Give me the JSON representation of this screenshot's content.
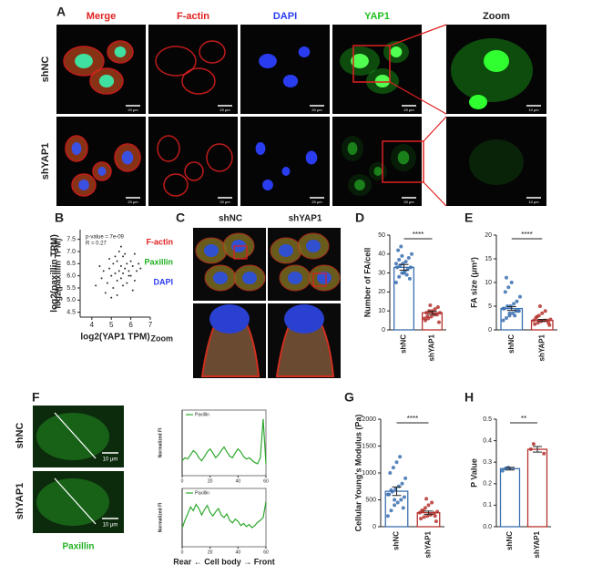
{
  "labels": {
    "panel_a": "A",
    "panel_b": "B",
    "panel_c": "C",
    "panel_d": "D",
    "panel_e": "E",
    "panel_f": "F",
    "panel_g": "G",
    "panel_h": "H",
    "a_columns": [
      "Merge",
      "F-actin",
      "DAPI",
      "YAP1",
      "Zoom"
    ],
    "a_rows": [
      "shNC",
      "shYAP1"
    ],
    "a_scale": "20 μm",
    "a_zoom_scale": "10 μm",
    "c_columns": [
      "shNC",
      "shYAP1"
    ],
    "c_channels": [
      "F-actin",
      "Paxillin",
      "DAPI"
    ],
    "c_zoom": "Zoom",
    "f_rows": [
      "shNC",
      "shYAP1"
    ],
    "f_scale": "10 μm",
    "f_channel": "Paxillin"
  },
  "chart_data": [
    {
      "type": "scatter",
      "xlabel": "log2(YAP1 TPM)",
      "ylabel": "log2(paxillin TPM)",
      "annotations": [
        "p-value = 7e-09",
        "R = 0.27"
      ],
      "color": "#333333",
      "xlim": [
        3.4,
        7
      ],
      "ylim": [
        4.3,
        7.9
      ],
      "xticks": [
        4,
        5,
        6,
        7
      ],
      "yticks": [
        {
          "value": 4.5,
          "label": "4.5"
        },
        {
          "value": 5,
          "label": "5.0"
        },
        {
          "value": 5.5,
          "label": "5.5"
        },
        {
          "value": 6,
          "label": "6.0"
        },
        {
          "value": 6.5,
          "label": "6.5"
        },
        {
          "value": 7,
          "label": "7.0"
        },
        {
          "value": 7.5,
          "label": "7.5"
        }
      ],
      "x": [
        4.2,
        4.5,
        4.6,
        4.8,
        4.9,
        5.0,
        5.1,
        5.1,
        5.2,
        5.3,
        5.3,
        5.4,
        5.5,
        5.5,
        5.6,
        5.6,
        5.7,
        5.8,
        5.8,
        5.9,
        6.0,
        6.0,
        6.1,
        6.2,
        6.3,
        6.4,
        4.4,
        4.7,
        5.0,
        5.2,
        5.4,
        5.6,
        5.9,
        6.1,
        6.5,
        4.9,
        5.3,
        5.7,
        6.2,
        5.5
      ],
      "y": [
        5.6,
        5.9,
        6.2,
        5.7,
        6.3,
        6.0,
        6.5,
        5.5,
        6.1,
        6.6,
        5.8,
        6.2,
        6.4,
        5.9,
        6.8,
        6.1,
        6.3,
        6.5,
        5.7,
        6.2,
        6.6,
        6.0,
        6.4,
        6.9,
        6.2,
        6.5,
        6.4,
        5.3,
        5.1,
        6.8,
        7.0,
        5.6,
        6.0,
        5.4,
        6.3,
        6.7,
        5.2,
        6.9,
        5.8,
        7.2
      ]
    },
    {
      "type": "bar",
      "ylabel": "Number of FA/cell",
      "categories": [
        "shNC",
        "shYAP1"
      ],
      "values": [
        33,
        9
      ],
      "errors": [
        1.5,
        0.8
      ],
      "points": [
        [
          25,
          28,
          30,
          31,
          32,
          33,
          33,
          34,
          35,
          36,
          38,
          40,
          42,
          44,
          30,
          29,
          27,
          35,
          37,
          39
        ],
        [
          4,
          5,
          6,
          7,
          8,
          8,
          9,
          9,
          10,
          10,
          11,
          12,
          6,
          7,
          13
        ]
      ],
      "colors": [
        "#3a6fb0",
        "#b5322e"
      ],
      "ylim": [
        0,
        50
      ],
      "yticks": [
        0,
        10,
        20,
        30,
        40,
        50
      ],
      "significance": "****"
    },
    {
      "type": "bar",
      "ylabel": "FA size (μm²)",
      "categories": [
        "shNC",
        "shYAP1"
      ],
      "values": [
        4.5,
        2
      ],
      "errors": [
        0.4,
        0.2
      ],
      "points": [
        [
          2,
          2.5,
          3,
          3.5,
          4,
          4,
          4.5,
          5,
          5,
          5.5,
          6,
          7,
          8,
          9,
          10,
          3,
          4,
          4.5,
          11,
          3.5
        ],
        [
          1,
          1.2,
          1.5,
          1.8,
          2,
          2,
          2.2,
          2.5,
          3,
          3.5,
          4,
          1.5,
          2,
          2.8,
          5
        ]
      ],
      "colors": [
        "#3a6fb0",
        "#b5322e"
      ],
      "ylim": [
        0,
        20
      ],
      "yticks": [
        0,
        5,
        10,
        15,
        20
      ],
      "significance": "****"
    },
    {
      "type": "bar",
      "ylabel": "Cellular Young's Modulus (Pa)",
      "categories": [
        "shNC",
        "shYAP1"
      ],
      "values": [
        660,
        260
      ],
      "errors": [
        80,
        30
      ],
      "points": [
        [
          200,
          300,
          400,
          450,
          500,
          550,
          600,
          650,
          700,
          750,
          800,
          900,
          1000,
          1100,
          1200,
          1300,
          350,
          600,
          680,
          500
        ],
        [
          100,
          150,
          180,
          200,
          220,
          250,
          280,
          300,
          350,
          400,
          450,
          200,
          260,
          300,
          520
        ]
      ],
      "colors": [
        "#3a6fb0",
        "#b5322e"
      ],
      "ylim": [
        0,
        2000
      ],
      "yticks": [
        0,
        500,
        1000,
        1500,
        2000
      ],
      "significance": "****"
    },
    {
      "type": "bar",
      "ylabel": "P Value",
      "categories": [
        "shNC",
        "shYAP1"
      ],
      "values": [
        0.27,
        0.36
      ],
      "errors": [
        0.006,
        0.013
      ],
      "points": [
        [
          0.26,
          0.27,
          0.275
        ],
        [
          0.34,
          0.36,
          0.385
        ]
      ],
      "colors": [
        "#3a6fb0",
        "#b5322e"
      ],
      "ylim": [
        0,
        0.5
      ],
      "yticks": [
        {
          "value": 0,
          "label": "0.0"
        },
        0.1,
        0.2,
        0.3,
        0.4,
        0.5
      ],
      "significance": "**"
    },
    {
      "type": "line",
      "ylabel": "Normalized FI",
      "xlim": [
        0,
        60
      ],
      "ylim": [
        0,
        1.1
      ],
      "xticks": [
        0,
        20,
        40,
        60
      ],
      "x": [
        0,
        2,
        4,
        6,
        8,
        10,
        12,
        14,
        16,
        18,
        20,
        22,
        24,
        26,
        28,
        30,
        32,
        34,
        36,
        38,
        40,
        42,
        44,
        46,
        48,
        50,
        52,
        54,
        56,
        58,
        60
      ],
      "series": [
        {
          "name": "Paxillin",
          "color": "#2ca82c",
          "values": [
            0.25,
            0.3,
            0.28,
            0.35,
            0.42,
            0.38,
            0.3,
            0.25,
            0.32,
            0.4,
            0.45,
            0.38,
            0.3,
            0.35,
            0.42,
            0.48,
            0.4,
            0.33,
            0.3,
            0.38,
            0.45,
            0.4,
            0.32,
            0.28,
            0.3,
            0.26,
            0.22,
            0.2,
            0.3,
            0.95,
            0.2
          ]
        }
      ]
    },
    {
      "type": "line",
      "ylabel": "Normalized FI",
      "xlabel": "Rear ← Cell body → Front",
      "xlim": [
        0,
        60
      ],
      "ylim": [
        0,
        1.1
      ],
      "xticks": [
        0,
        20,
        40,
        60
      ],
      "x": [
        0,
        2,
        4,
        6,
        8,
        10,
        12,
        14,
        16,
        18,
        20,
        22,
        24,
        26,
        28,
        30,
        32,
        34,
        36,
        38,
        40,
        42,
        44,
        46,
        48,
        50,
        52,
        54,
        56,
        58,
        60
      ],
      "series": [
        {
          "name": "Paxillin",
          "color": "#2ca82c",
          "values": [
            0.35,
            0.5,
            0.62,
            0.75,
            0.68,
            0.8,
            0.72,
            0.6,
            0.7,
            0.78,
            0.65,
            0.58,
            0.66,
            0.72,
            0.6,
            0.55,
            0.62,
            0.5,
            0.45,
            0.52,
            0.48,
            0.4,
            0.44,
            0.38,
            0.42,
            0.36,
            0.4,
            0.46,
            0.5,
            0.55,
            0.85
          ]
        }
      ]
    }
  ]
}
